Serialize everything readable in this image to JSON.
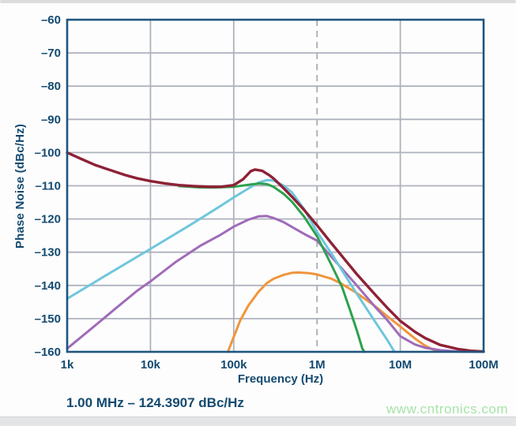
{
  "page": {
    "watermark": "www.cntronics.com"
  },
  "chart_data": {
    "type": "line",
    "title": "",
    "xlabel": "Frequency (Hz)",
    "ylabel": "Phase Noise (dBc/Hz)",
    "x_scale": "log",
    "xlim": [
      1000,
      100000000
    ],
    "ylim": [
      -160,
      -60
    ],
    "grid": true,
    "legend": "none",
    "annotation": "1.00 MHz – 124.3907 dBc/Hz",
    "marker_line_x": 1000000,
    "x_ticks": [
      {
        "label": "1k",
        "value": 1000
      },
      {
        "label": "10k",
        "value": 10000
      },
      {
        "label": "100k",
        "value": 100000
      },
      {
        "label": "1M",
        "value": 1000000
      },
      {
        "label": "10M",
        "value": 10000000
      },
      {
        "label": "100M",
        "value": 100000000
      }
    ],
    "y_ticks": [
      {
        "label": "–60",
        "value": -60
      },
      {
        "label": "–70",
        "value": -70
      },
      {
        "label": "–80",
        "value": -80
      },
      {
        "label": "–90",
        "value": -90
      },
      {
        "label": "–100",
        "value": -100
      },
      {
        "label": "–110",
        "value": -110
      },
      {
        "label": "–120",
        "value": -120
      },
      {
        "label": "–130",
        "value": -130
      },
      {
        "label": "–140",
        "value": -140
      },
      {
        "label": "–150",
        "value": -150
      },
      {
        "label": "–160",
        "value": -160
      }
    ],
    "colors": {
      "axis_border": "#1f557e",
      "grid_line": "#aeb2be",
      "marker_dash": "#afb3bb",
      "text": "#134a70"
    },
    "series": [
      {
        "name": "curve-orange",
        "color": "#f0953c",
        "points": [
          [
            85000,
            -160
          ],
          [
            100000,
            -155.5
          ],
          [
            120000,
            -150.5
          ],
          [
            150000,
            -146
          ],
          [
            200000,
            -141.8
          ],
          [
            250000,
            -139.3
          ],
          [
            300000,
            -138
          ],
          [
            400000,
            -136.8
          ],
          [
            500000,
            -136.2
          ],
          [
            600000,
            -136.1
          ],
          [
            800000,
            -136.3
          ],
          [
            1000000,
            -136.7
          ],
          [
            1500000,
            -138
          ],
          [
            2000000,
            -139.6
          ],
          [
            3000000,
            -142.3
          ],
          [
            5000000,
            -146.3
          ],
          [
            7000000,
            -149.3
          ],
          [
            10000000,
            -152.4
          ],
          [
            15000000,
            -156
          ],
          [
            20000000,
            -158.2
          ],
          [
            25000000,
            -159.4
          ],
          [
            30000000,
            -159.9
          ]
        ]
      },
      {
        "name": "curve-purple",
        "color": "#9f6cb9",
        "points": [
          [
            1000,
            -159
          ],
          [
            2000,
            -152.8
          ],
          [
            4000,
            -146.5
          ],
          [
            7000,
            -141.5
          ],
          [
            10000,
            -138.8
          ],
          [
            20000,
            -133
          ],
          [
            40000,
            -128
          ],
          [
            70000,
            -124.7
          ],
          [
            100000,
            -122.3
          ],
          [
            150000,
            -120.2
          ],
          [
            200000,
            -119.2
          ],
          [
            250000,
            -119.1
          ],
          [
            300000,
            -119.7
          ],
          [
            400000,
            -121
          ],
          [
            500000,
            -122.4
          ],
          [
            700000,
            -124.5
          ],
          [
            1000000,
            -126.5
          ],
          [
            1500000,
            -131.5
          ],
          [
            2000000,
            -135
          ],
          [
            3000000,
            -140
          ],
          [
            5000000,
            -146.5
          ],
          [
            7000000,
            -150.5
          ],
          [
            10000000,
            -155.3
          ],
          [
            15000000,
            -157.8
          ],
          [
            20000000,
            -158.8
          ],
          [
            30000000,
            -159.5
          ],
          [
            50000000,
            -159.9
          ],
          [
            100000000,
            -160
          ]
        ]
      },
      {
        "name": "curve-cyan",
        "color": "#6fc6dc",
        "points": [
          [
            1000,
            -144
          ],
          [
            3000,
            -136.8
          ],
          [
            10000,
            -129
          ],
          [
            30000,
            -121.8
          ],
          [
            70000,
            -116
          ],
          [
            100000,
            -113.5
          ],
          [
            150000,
            -110.8
          ],
          [
            200000,
            -109
          ],
          [
            250000,
            -108.3
          ],
          [
            300000,
            -108.4
          ],
          [
            400000,
            -110
          ],
          [
            500000,
            -112
          ],
          [
            700000,
            -117
          ],
          [
            1000000,
            -123.9
          ],
          [
            1500000,
            -130.5
          ],
          [
            2000000,
            -135.5
          ],
          [
            3000000,
            -142.5
          ],
          [
            5000000,
            -151
          ],
          [
            7000000,
            -156.5
          ],
          [
            8500000,
            -160
          ]
        ]
      },
      {
        "name": "curve-green",
        "color": "#2da14c",
        "points": [
          [
            22000,
            -110.1
          ],
          [
            40000,
            -110.5
          ],
          [
            60000,
            -110.5
          ],
          [
            100000,
            -110.3
          ],
          [
            150000,
            -109.7
          ],
          [
            200000,
            -109.3
          ],
          [
            250000,
            -109.5
          ],
          [
            300000,
            -110.3
          ],
          [
            400000,
            -112.5
          ],
          [
            500000,
            -114.8
          ],
          [
            700000,
            -119.3
          ],
          [
            1000000,
            -125.2
          ],
          [
            1500000,
            -134
          ],
          [
            2000000,
            -140.5
          ],
          [
            2500000,
            -147.5
          ],
          [
            3000000,
            -153.5
          ],
          [
            3500000,
            -159
          ],
          [
            3700000,
            -160
          ]
        ]
      },
      {
        "name": "curve-dark-red",
        "color": "#8e2136",
        "points": [
          [
            1000,
            -100
          ],
          [
            1500,
            -102
          ],
          [
            2200,
            -103.8
          ],
          [
            3300,
            -105.3
          ],
          [
            5000,
            -106.8
          ],
          [
            7000,
            -107.8
          ],
          [
            10000,
            -108.6
          ],
          [
            15000,
            -109.3
          ],
          [
            22000,
            -109.8
          ],
          [
            33000,
            -110.1
          ],
          [
            50000,
            -110.3
          ],
          [
            70000,
            -110.3
          ],
          [
            100000,
            -109.8
          ],
          [
            130000,
            -108
          ],
          [
            160000,
            -105.6
          ],
          [
            180000,
            -105.1
          ],
          [
            220000,
            -105.5
          ],
          [
            270000,
            -106.9
          ],
          [
            300000,
            -107.8
          ],
          [
            400000,
            -110.8
          ],
          [
            500000,
            -113.3
          ],
          [
            700000,
            -117.3
          ],
          [
            1000000,
            -121.9
          ],
          [
            1500000,
            -127.4
          ],
          [
            2000000,
            -131.2
          ],
          [
            3000000,
            -136.6
          ],
          [
            5000000,
            -142.8
          ],
          [
            7000000,
            -146.8
          ],
          [
            10000000,
            -150.7
          ],
          [
            15000000,
            -154
          ],
          [
            20000000,
            -155.9
          ],
          [
            30000000,
            -157.9
          ],
          [
            50000000,
            -159.2
          ],
          [
            70000000,
            -159.7
          ],
          [
            100000000,
            -159.9
          ]
        ]
      }
    ]
  }
}
